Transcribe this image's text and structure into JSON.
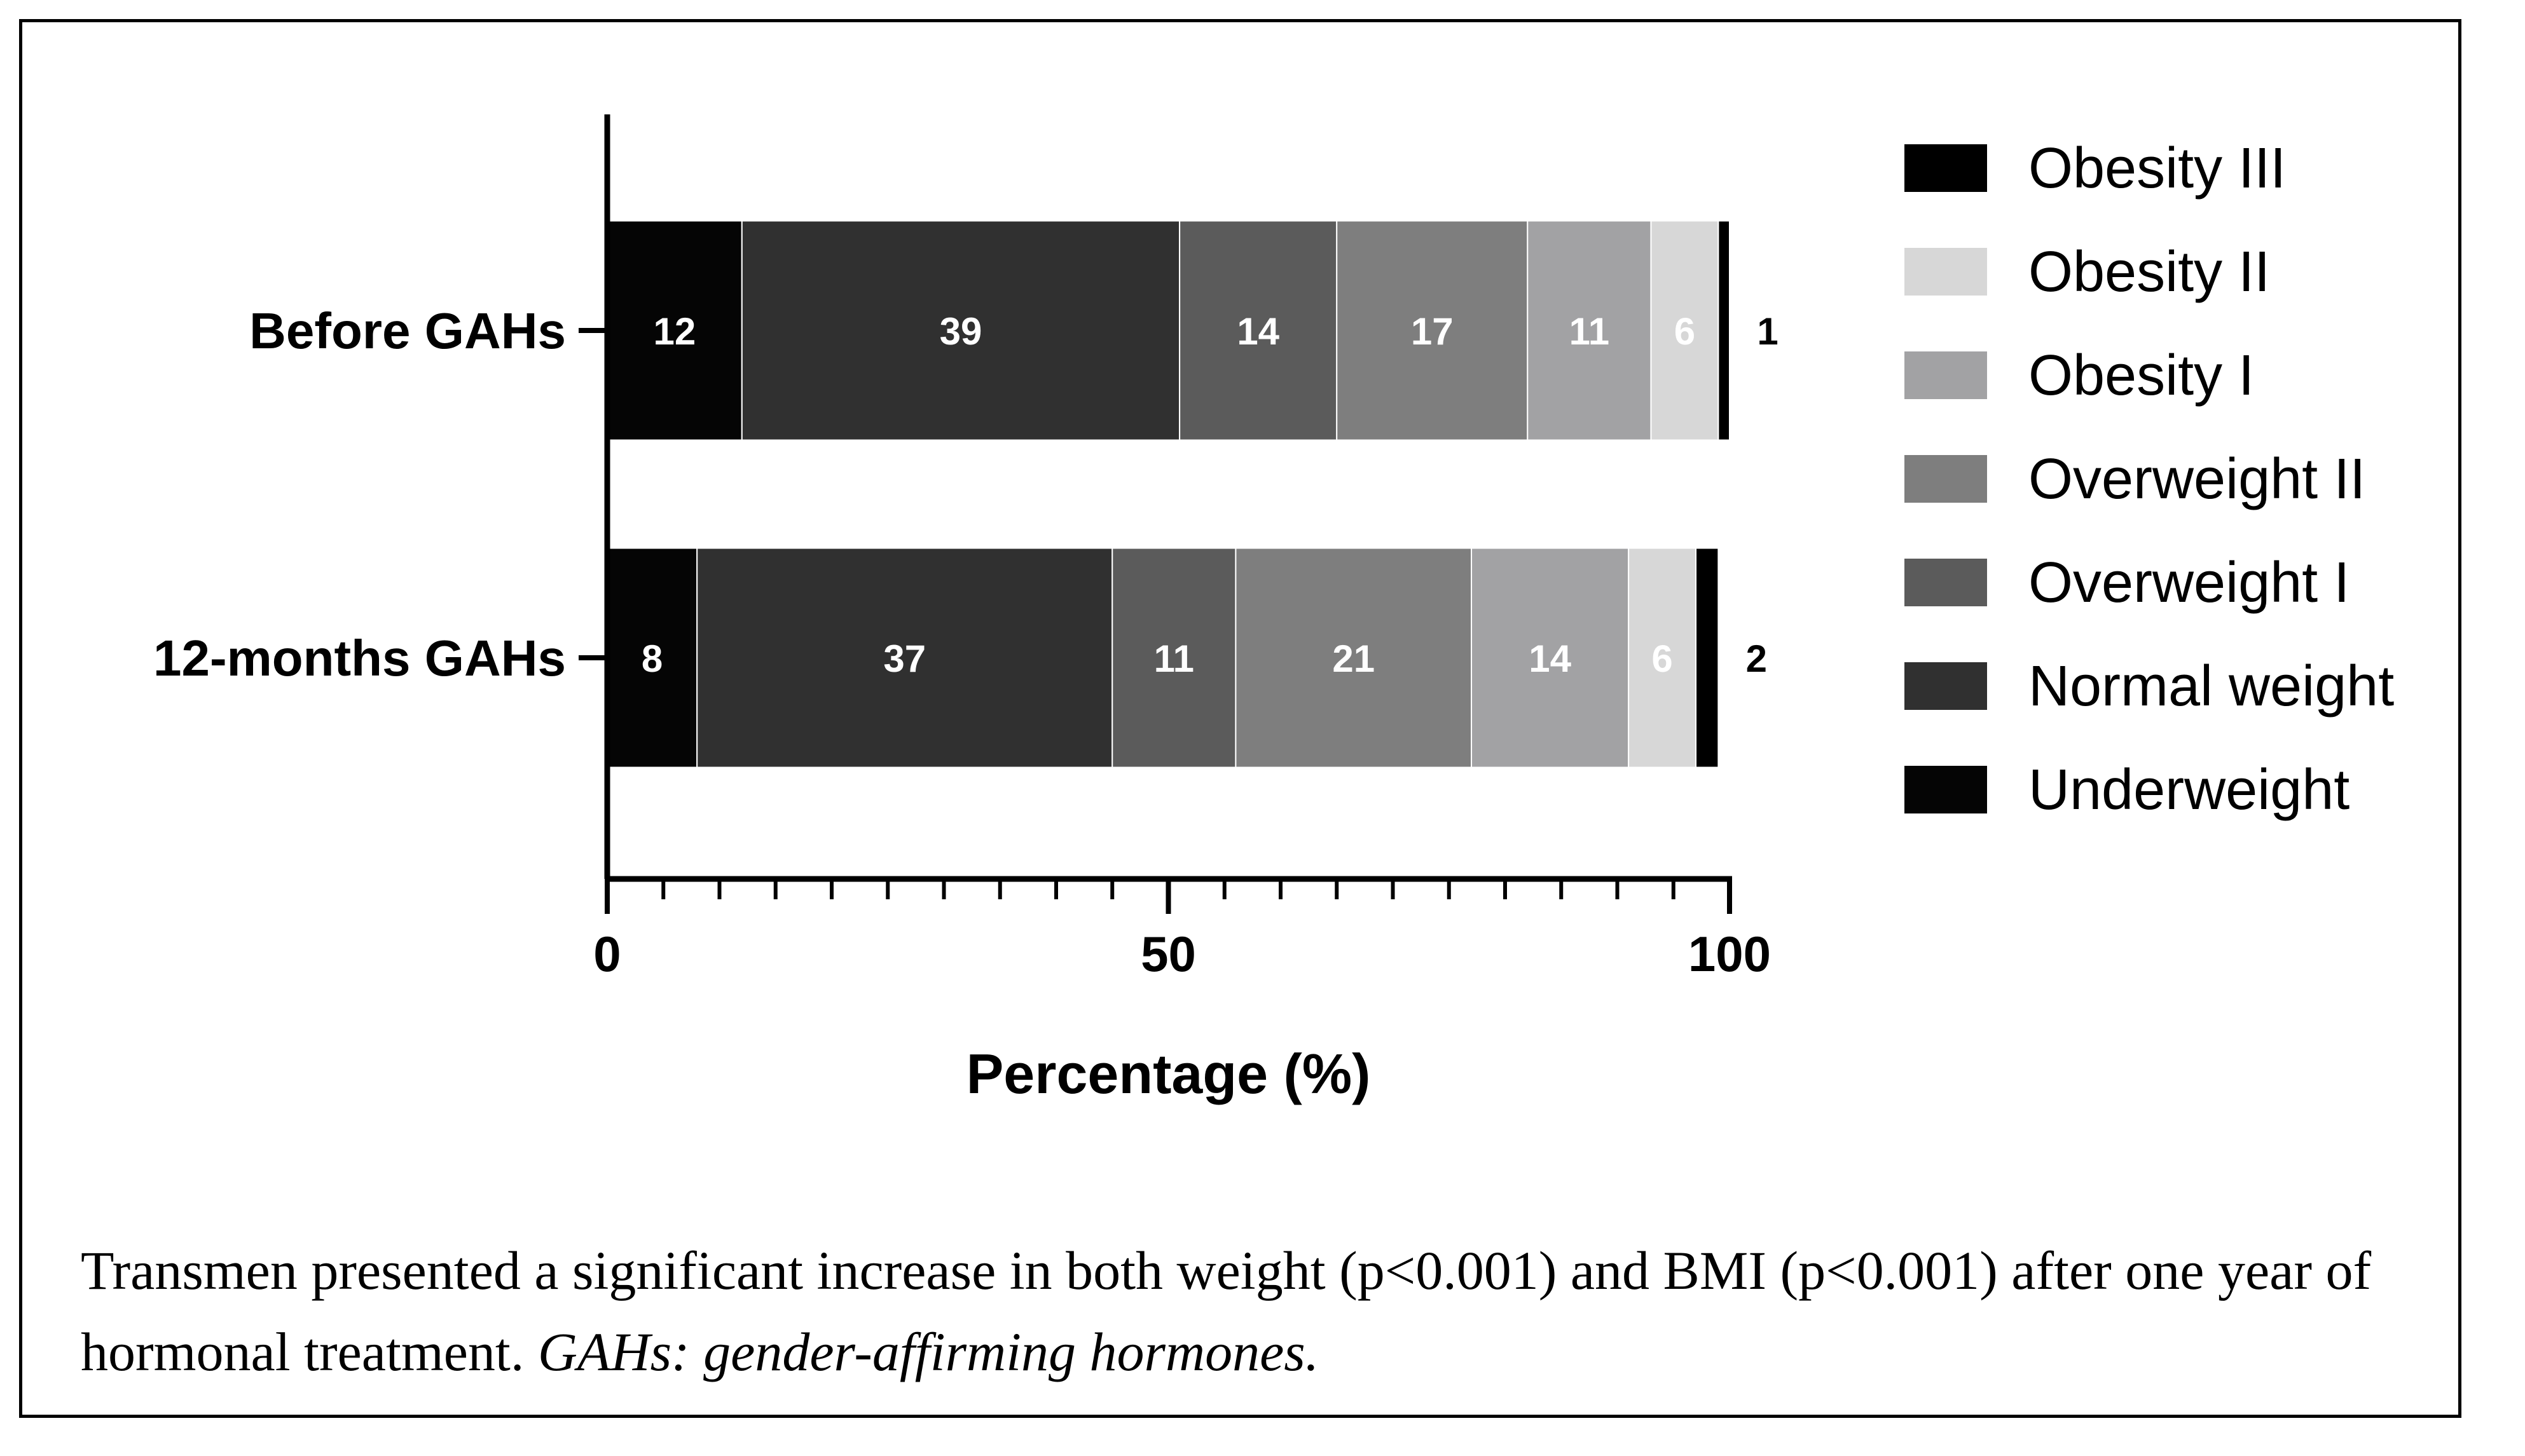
{
  "chart_data": {
    "type": "bar",
    "orientation": "horizontal",
    "stacked": true,
    "categories": [
      "Before GAHs",
      "12-months GAHs"
    ],
    "series": [
      {
        "name": "Underweight",
        "values": [
          12,
          8
        ],
        "color": "#050505",
        "labels": [
          "12",
          "8"
        ]
      },
      {
        "name": "Normal weight",
        "values": [
          39,
          37
        ],
        "color": "#303030",
        "labels": [
          "39",
          "37"
        ]
      },
      {
        "name": "Overweight I",
        "values": [
          14,
          11
        ],
        "color": "#5b5b5b",
        "labels": [
          "14",
          "11"
        ]
      },
      {
        "name": "Overweight II",
        "values": [
          17,
          21
        ],
        "color": "#7e7e7e",
        "labels": [
          "17",
          "21"
        ]
      },
      {
        "name": "Obesity I",
        "values": [
          11,
          14
        ],
        "color": "#a2a2a4",
        "labels": [
          "11",
          "14"
        ]
      },
      {
        "name": "Obesity II",
        "values": [
          6,
          6
        ],
        "color": "#d7d7d7",
        "labels": [
          "6",
          "6"
        ]
      },
      {
        "name": "Obesity III",
        "values": [
          1,
          2
        ],
        "color": "#000000",
        "labels": [
          "1",
          "2"
        ]
      }
    ],
    "legend_order": [
      "Obesity III",
      "Obesity II",
      "Obesity I",
      "Overweight II",
      "Overweight I",
      "Normal weight",
      "Underweight"
    ],
    "legend_position": "right",
    "xlabel": "Percentage (%)",
    "xlim": [
      0,
      100
    ],
    "xticks": [
      0,
      50,
      100
    ],
    "xticks_minor_step": 5,
    "grid": false
  },
  "caption": {
    "text": "Transmen presented a significant increase in both weight (p<0.001) and BMI (p<0.001) after one year of hormonal treatment.",
    "abbreviation": "GAHs: gender-affirming hormones."
  }
}
